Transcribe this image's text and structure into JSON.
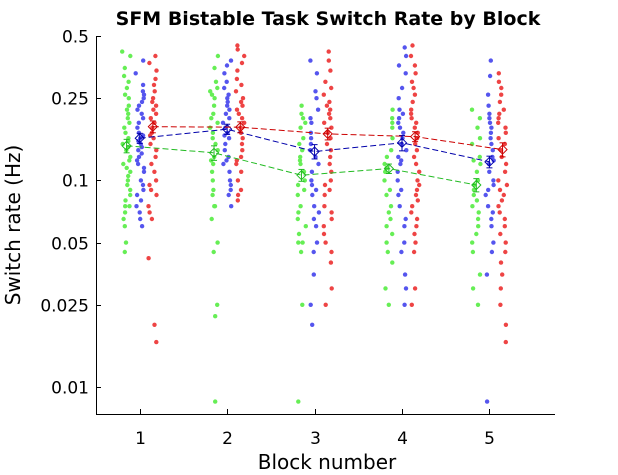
{
  "chart_data": {
    "type": "scatter",
    "title": "SFM Bistable Task Switch Rate by Block",
    "xlabel": "Block number",
    "ylabel": "Switch rate (Hz)",
    "y_scale": "log",
    "xlim": [
      0.5,
      5.75
    ],
    "ylim": [
      0.0074,
      0.5
    ],
    "x_ticks": [
      1,
      2,
      3,
      4,
      5
    ],
    "x_tick_labels": [
      "1",
      "2",
      "3",
      "4",
      "5"
    ],
    "y_ticks": [
      0.01,
      0.025,
      0.05,
      0.1,
      0.25,
      0.5
    ],
    "y_tick_labels": [
      "0.01",
      "0.025",
      "0.05",
      "0.1",
      "0.25",
      "0.5"
    ],
    "grid": false,
    "series": [
      {
        "color": "#22bb22",
        "point_color": "#66ee55",
        "offset": -0.15,
        "means": [
          0.147,
          0.136,
          0.106,
          0.114,
          0.095
        ],
        "errors": [
          0.011,
          0.011,
          0.007,
          0.006,
          0.007
        ],
        "points": [
          [
            0.42,
            0.4,
            0.35,
            0.32,
            0.3,
            0.28,
            0.26,
            0.25,
            0.23,
            0.22,
            0.21,
            0.2,
            0.19,
            0.18,
            0.17,
            0.16,
            0.155,
            0.15,
            0.145,
            0.14,
            0.13,
            0.125,
            0.12,
            0.115,
            0.11,
            0.105,
            0.1,
            0.095,
            0.09,
            0.085,
            0.08,
            0.075,
            0.075,
            0.07,
            0.065,
            0.06,
            0.05,
            0.045
          ],
          [
            0.4,
            0.35,
            0.3,
            0.28,
            0.27,
            0.26,
            0.25,
            0.23,
            0.21,
            0.2,
            0.19,
            0.18,
            0.17,
            0.16,
            0.15,
            0.14,
            0.13,
            0.125,
            0.12,
            0.11,
            0.1,
            0.09,
            0.085,
            0.075,
            0.075,
            0.065,
            0.05,
            0.045,
            0.025,
            0.022,
            0.0085
          ],
          [
            0.23,
            0.21,
            0.2,
            0.19,
            0.18,
            0.16,
            0.15,
            0.14,
            0.13,
            0.125,
            0.12,
            0.11,
            0.1,
            0.095,
            0.09,
            0.085,
            0.075,
            0.07,
            0.065,
            0.06,
            0.055,
            0.05,
            0.05,
            0.045,
            0.025,
            0.0085
          ],
          [
            0.22,
            0.2,
            0.19,
            0.18,
            0.16,
            0.14,
            0.13,
            0.12,
            0.115,
            0.11,
            0.1,
            0.09,
            0.085,
            0.075,
            0.07,
            0.065,
            0.06,
            0.055,
            0.05,
            0.045,
            0.04,
            0.03,
            0.025
          ],
          [
            0.22,
            0.2,
            0.18,
            0.16,
            0.15,
            0.13,
            0.125,
            0.12,
            0.11,
            0.1,
            0.095,
            0.09,
            0.085,
            0.08,
            0.075,
            0.07,
            0.065,
            0.06,
            0.055,
            0.05,
            0.045,
            0.035,
            0.03,
            0.025
          ]
        ]
      },
      {
        "color": "#0000aa",
        "point_color": "#5555ee",
        "offset": 0.0,
        "means": [
          0.16,
          0.177,
          0.138,
          0.152,
          0.123
        ],
        "errors": [
          0.009,
          0.01,
          0.011,
          0.013,
          0.008
        ],
        "points": [
          [
            0.38,
            0.33,
            0.29,
            0.27,
            0.26,
            0.25,
            0.24,
            0.23,
            0.22,
            0.21,
            0.2,
            0.19,
            0.18,
            0.17,
            0.165,
            0.16,
            0.155,
            0.15,
            0.145,
            0.14,
            0.135,
            0.13,
            0.125,
            0.12,
            0.115,
            0.11,
            0.1,
            0.095,
            0.09,
            0.085,
            0.08,
            0.075,
            0.07,
            0.065,
            0.06
          ],
          [
            0.38,
            0.36,
            0.33,
            0.3,
            0.28,
            0.26,
            0.25,
            0.24,
            0.23,
            0.22,
            0.21,
            0.2,
            0.19,
            0.18,
            0.17,
            0.165,
            0.16,
            0.15,
            0.14,
            0.13,
            0.125,
            0.12,
            0.11,
            0.1,
            0.095,
            0.09,
            0.085,
            0.075
          ],
          [
            0.38,
            0.33,
            0.27,
            0.25,
            0.22,
            0.2,
            0.19,
            0.17,
            0.16,
            0.15,
            0.14,
            0.13,
            0.12,
            0.11,
            0.1,
            0.095,
            0.09,
            0.085,
            0.075,
            0.07,
            0.065,
            0.06,
            0.05,
            0.045,
            0.035,
            0.025,
            0.02
          ],
          [
            0.44,
            0.4,
            0.36,
            0.33,
            0.28,
            0.25,
            0.22,
            0.21,
            0.2,
            0.19,
            0.18,
            0.17,
            0.16,
            0.15,
            0.14,
            0.13,
            0.125,
            0.12,
            0.11,
            0.1,
            0.09,
            0.085,
            0.075,
            0.065,
            0.06,
            0.05,
            0.045,
            0.035,
            0.03,
            0.025
          ],
          [
            0.38,
            0.32,
            0.26,
            0.23,
            0.21,
            0.2,
            0.19,
            0.18,
            0.17,
            0.16,
            0.15,
            0.14,
            0.13,
            0.125,
            0.12,
            0.11,
            0.1,
            0.095,
            0.09,
            0.085,
            0.075,
            0.07,
            0.065,
            0.06,
            0.05,
            0.045,
            0.035,
            0.0085
          ]
        ]
      },
      {
        "color": "#cc0000",
        "point_color": "#ee4444",
        "offset": 0.15,
        "means": [
          0.182,
          0.181,
          0.168,
          0.163,
          0.141
        ],
        "errors": [
          0.012,
          0.011,
          0.011,
          0.009,
          0.011
        ],
        "points": [
          [
            0.4,
            0.37,
            0.34,
            0.31,
            0.29,
            0.27,
            0.25,
            0.24,
            0.23,
            0.22,
            0.21,
            0.2,
            0.19,
            0.18,
            0.17,
            0.165,
            0.16,
            0.15,
            0.14,
            0.13,
            0.12,
            0.11,
            0.1,
            0.095,
            0.09,
            0.085,
            0.075,
            0.07,
            0.065,
            0.042,
            0.02,
            0.0165
          ],
          [
            0.45,
            0.43,
            0.4,
            0.37,
            0.34,
            0.31,
            0.29,
            0.27,
            0.25,
            0.24,
            0.23,
            0.22,
            0.21,
            0.2,
            0.19,
            0.18,
            0.17,
            0.16,
            0.15,
            0.14,
            0.13,
            0.125,
            0.12,
            0.11,
            0.1,
            0.09,
            0.085,
            0.08
          ],
          [
            0.42,
            0.38,
            0.34,
            0.3,
            0.28,
            0.26,
            0.24,
            0.23,
            0.22,
            0.21,
            0.2,
            0.19,
            0.18,
            0.17,
            0.16,
            0.15,
            0.14,
            0.13,
            0.12,
            0.11,
            0.1,
            0.095,
            0.09,
            0.085,
            0.075,
            0.07,
            0.065,
            0.06,
            0.055,
            0.05,
            0.045,
            0.04,
            0.03,
            0.025
          ],
          [
            0.45,
            0.4,
            0.36,
            0.33,
            0.3,
            0.28,
            0.26,
            0.24,
            0.22,
            0.21,
            0.2,
            0.19,
            0.18,
            0.17,
            0.16,
            0.15,
            0.14,
            0.13,
            0.12,
            0.11,
            0.1,
            0.095,
            0.09,
            0.085,
            0.08,
            0.075,
            0.07,
            0.065,
            0.06,
            0.055,
            0.05,
            0.045,
            0.03,
            0.025
          ],
          [
            0.33,
            0.3,
            0.28,
            0.26,
            0.24,
            0.22,
            0.21,
            0.2,
            0.19,
            0.18,
            0.17,
            0.16,
            0.15,
            0.14,
            0.13,
            0.12,
            0.11,
            0.1,
            0.095,
            0.09,
            0.085,
            0.08,
            0.075,
            0.07,
            0.065,
            0.06,
            0.055,
            0.05,
            0.045,
            0.04,
            0.035,
            0.03,
            0.025,
            0.02,
            0.0165
          ]
        ]
      }
    ]
  }
}
